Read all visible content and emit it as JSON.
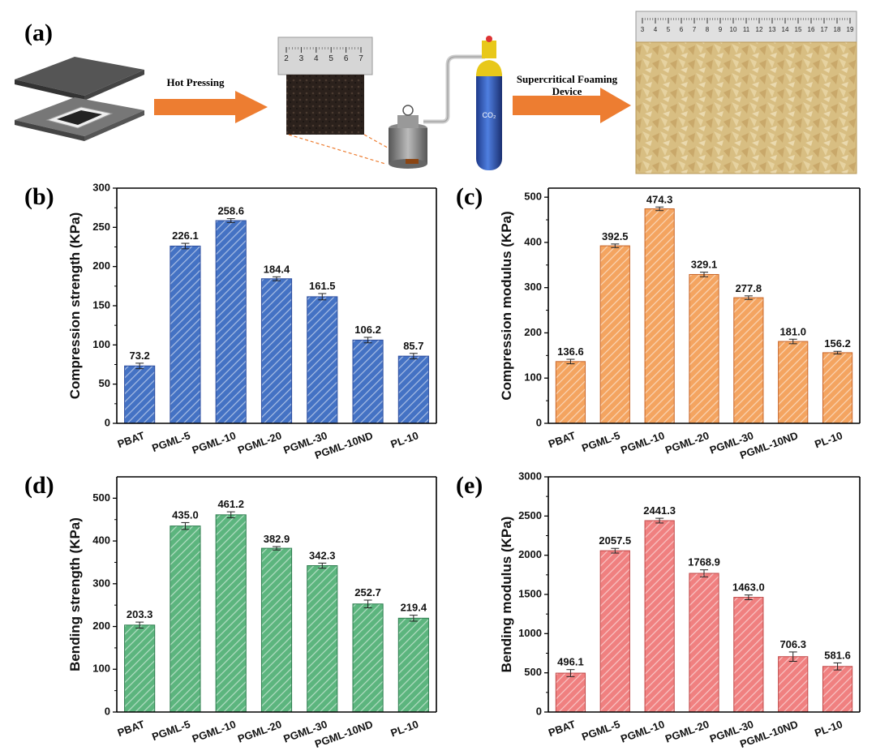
{
  "figure": {
    "panels": {
      "a": "(a)",
      "b": "(b)",
      "c": "(c)",
      "d": "(d)",
      "e": "(e)"
    },
    "scheme": {
      "step1_label": "Hot Pressing",
      "step2_label_line1": "Supercritical Foaming",
      "step2_label_line2": "Device",
      "cylinder_label": "CO₂",
      "small_ruler_ticks": [
        "2",
        "3",
        "4",
        "5",
        "6",
        "7"
      ],
      "large_ruler_ticks": [
        "3",
        "4",
        "5",
        "6",
        "7",
        "8",
        "9",
        "10",
        "11",
        "12",
        "13",
        "14",
        "15",
        "16",
        "17",
        "18",
        "19"
      ]
    }
  },
  "colors": {
    "arrow": "#ED7D31",
    "blue": "#4472C4",
    "orange": "#F4A460",
    "green": "#5CB57E",
    "red": "#F08080"
  },
  "chart_data": [
    {
      "id": "b",
      "type": "bar",
      "categories": [
        "PBAT",
        "PGML-5",
        "PGML-10",
        "PGML-20",
        "PGML-30",
        "PGML-10ND",
        "PL-10"
      ],
      "values": [
        73.2,
        226.1,
        258.6,
        184.4,
        161.5,
        106.2,
        85.7
      ],
      "labels": [
        "73.2",
        "226.1",
        "258.6",
        "184.4",
        "161.5",
        "106.2",
        "85.7"
      ],
      "errors": [
        3.5,
        3.5,
        2.5,
        2.5,
        4,
        3.5,
        3.5
      ],
      "ylabel": "Compression strength (KPa)",
      "ylim": [
        0,
        300
      ],
      "yticks": [
        0,
        50,
        100,
        150,
        200,
        250,
        300
      ],
      "color": "#4472C4",
      "stroke": "#2F4F9F"
    },
    {
      "id": "c",
      "type": "bar",
      "categories": [
        "PBAT",
        "PGML-5",
        "PGML-10",
        "PGML-20",
        "PGML-30",
        "PGML-10ND",
        "PL-10"
      ],
      "values": [
        136.6,
        392.5,
        474.3,
        329.1,
        277.8,
        181.0,
        156.2
      ],
      "labels": [
        "136.6",
        "392.5",
        "474.3",
        "329.1",
        "277.8",
        "181.0",
        "156.2"
      ],
      "errors": [
        5,
        4,
        4,
        5,
        4,
        5,
        3
      ],
      "ylabel": "Compression modulus (KPa)",
      "ylim": [
        0,
        520
      ],
      "yticks": [
        0,
        100,
        200,
        300,
        400,
        500
      ],
      "color": "#F4A460",
      "stroke": "#C8662A"
    },
    {
      "id": "d",
      "type": "bar",
      "categories": [
        "PBAT",
        "PGML-5",
        "PGML-10",
        "PGML-20",
        "PGML-30",
        "PGML-10ND",
        "PL-10"
      ],
      "values": [
        203.3,
        435.0,
        461.2,
        382.9,
        342.3,
        252.7,
        219.4
      ],
      "labels": [
        "203.3",
        "435.0",
        "461.2",
        "382.9",
        "342.3",
        "252.7",
        "219.4"
      ],
      "errors": [
        7,
        8,
        7,
        4,
        6,
        9,
        7
      ],
      "ylabel": "Bending strength (KPa)",
      "ylim": [
        0,
        550
      ],
      "yticks": [
        0,
        100,
        200,
        300,
        400,
        500
      ],
      "color": "#5CB57E",
      "stroke": "#2E7D4F"
    },
    {
      "id": "e",
      "type": "bar",
      "categories": [
        "PBAT",
        "PGML-5",
        "PGML-10",
        "PGML-20",
        "PGML-30",
        "PGML-10ND",
        "PL-10"
      ],
      "values": [
        496.1,
        2057.5,
        2441.3,
        1768.9,
        1463.0,
        706.3,
        581.6
      ],
      "labels": [
        "496.1",
        "2057.5",
        "2441.3",
        "1768.9",
        "1463.0",
        "706.3",
        "581.6"
      ],
      "errors": [
        45,
        30,
        30,
        45,
        30,
        60,
        45
      ],
      "ylabel": "Bending modulus (KPa)",
      "ylim": [
        0,
        3000
      ],
      "yticks": [
        0,
        500,
        1000,
        1500,
        2000,
        2500,
        3000
      ],
      "color": "#F08080",
      "stroke": "#C04848"
    }
  ]
}
